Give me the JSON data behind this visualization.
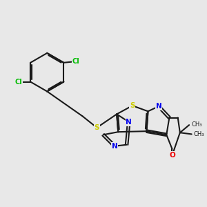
{
  "bg_color": "#e8e8e8",
  "bond_color": "#1a1a1a",
  "bond_lw": 1.5,
  "dbo": 0.04,
  "atom_colors": {
    "N": "#0000ee",
    "S": "#cccc00",
    "O": "#ee0000",
    "Cl": "#00bb00",
    "C": "#1a1a1a"
  },
  "fs": 7.5,
  "figsize": [
    3.0,
    3.0
  ],
  "dpi": 100,
  "xlim": [
    -3.2,
    3.2
  ],
  "ylim": [
    -2.8,
    2.8
  ]
}
